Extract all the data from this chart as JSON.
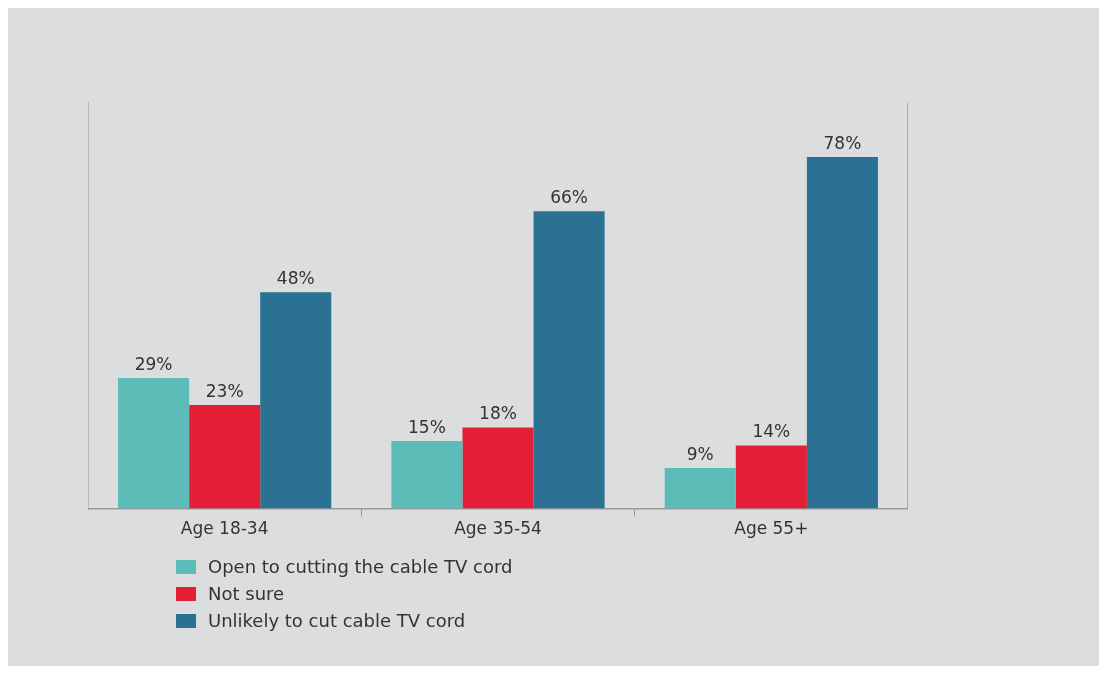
{
  "chart_data": {
    "type": "bar",
    "categories": [
      "Age 18-34",
      "Age 35-54",
      "Age 55+"
    ],
    "series": [
      {
        "name": "Open to cutting the cable TV cord",
        "color": "#5bbcb8",
        "values": [
          29,
          15,
          9
        ],
        "value_labels": [
          "29%",
          "15%",
          "9%"
        ]
      },
      {
        "name": "Not sure",
        "color": "#e31f35",
        "values": [
          23,
          18,
          14
        ],
        "value_labels": [
          "23%",
          "18%",
          "14%"
        ]
      },
      {
        "name": "Unlikely to cut cable TV cord",
        "color": "#2a7193",
        "values": [
          48,
          66,
          78
        ],
        "value_labels": [
          "48%",
          "66%",
          "78%"
        ]
      }
    ],
    "grid": false,
    "legend": "bottom left",
    "tick_labels": "x"
  }
}
